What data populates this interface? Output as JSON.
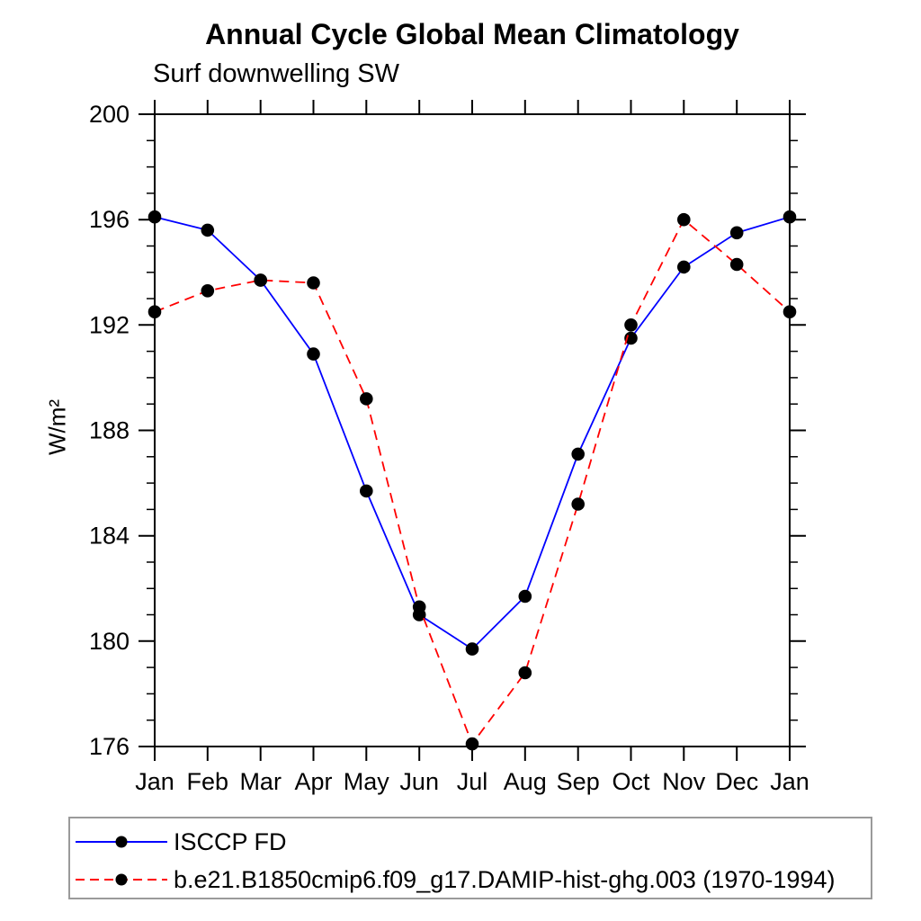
{
  "chart_data": {
    "type": "line",
    "title": "Annual Cycle Global Mean Climatology",
    "subtitle": "Surf downwelling SW",
    "ylabel": "W/m²",
    "xlabel": "",
    "categories": [
      "Jan",
      "Feb",
      "Mar",
      "Apr",
      "May",
      "Jun",
      "Jul",
      "Aug",
      "Sep",
      "Oct",
      "Nov",
      "Dec",
      "Jan"
    ],
    "ylim": [
      176,
      200
    ],
    "y_ticks": [
      176,
      180,
      184,
      188,
      192,
      196,
      200
    ],
    "y_minor_step": 1,
    "grid": false,
    "legend_position": "bottom",
    "axis_color": "#000000",
    "marker_color": "#000000",
    "series": [
      {
        "name": "ISCCP FD",
        "color": "#0000ff",
        "dash": "solid",
        "marker": "dot",
        "values": [
          196.1,
          195.6,
          193.7,
          190.9,
          185.7,
          181.0,
          179.7,
          181.7,
          187.1,
          191.5,
          194.2,
          195.5,
          196.1
        ]
      },
      {
        "name": "b.e21.B1850cmip6.f09_g17.DAMIP-hist-ghg.003 (1970-1994)",
        "color": "#ff0000",
        "dash": "dashed",
        "marker": "dot",
        "values": [
          192.5,
          193.3,
          193.7,
          193.6,
          189.2,
          181.3,
          176.1,
          178.8,
          185.2,
          192.0,
          196.0,
          194.3,
          192.5
        ]
      }
    ]
  }
}
